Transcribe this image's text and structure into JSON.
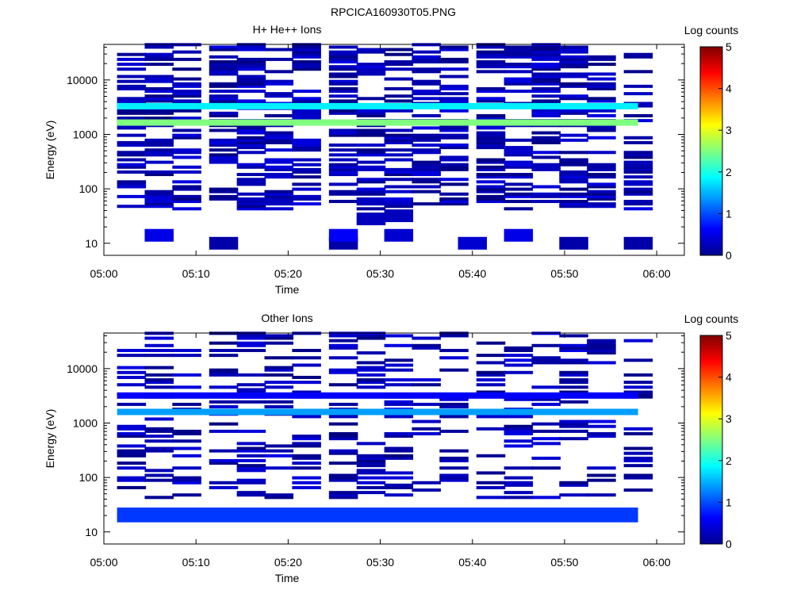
{
  "figure_title": "RPCICA160930T05.PNG",
  "chart_data": [
    {
      "type": "heatmap",
      "title": "H+ He++ Ions",
      "xlabel": "Time",
      "ylabel": "Energy (eV)",
      "x_ticks": [
        "05:00",
        "05:10",
        "05:20",
        "05:30",
        "05:40",
        "05:50",
        "06:00"
      ],
      "x_range": [
        "05:00",
        "06:03"
      ],
      "y_scale": "log",
      "y_ticks": [
        "10",
        "100",
        "1000",
        "10000"
      ],
      "y_range": [
        6,
        45000
      ],
      "colorbar": {
        "label": "Log counts",
        "ticks": [
          "0",
          "1",
          "2",
          "3",
          "4",
          "5"
        ],
        "range": [
          0,
          5
        ]
      },
      "time_bins": [
        "05:03",
        "05:06",
        "05:09",
        "05:13",
        "05:16",
        "05:19",
        "05:22",
        "05:26",
        "05:29",
        "05:32",
        "05:35",
        "05:38",
        "05:42",
        "05:45",
        "05:48",
        "05:51",
        "05:54",
        "05:58"
      ],
      "bands": [
        {
          "energy_ev": 1650,
          "log_counts": 2.5
        },
        {
          "energy_ev": 3300,
          "log_counts": 1.8
        }
      ],
      "scatter_density": 0.5,
      "low_energy_cells": [
        {
          "time": "05:13",
          "energy_ev": 10,
          "log_counts": 0.2
        },
        {
          "time": "05:26",
          "energy_ev": 10,
          "log_counts": 0.2
        },
        {
          "time": "05:40",
          "energy_ev": 10,
          "log_counts": 0.4
        },
        {
          "time": "05:51",
          "energy_ev": 10,
          "log_counts": 0.2
        },
        {
          "time": "05:58",
          "energy_ev": 10,
          "log_counts": 0.2
        },
        {
          "time": "05:06",
          "energy_ev": 14,
          "log_counts": 0.5
        },
        {
          "time": "05:26",
          "energy_ev": 14,
          "log_counts": 0.6
        },
        {
          "time": "05:32",
          "energy_ev": 14,
          "log_counts": 0.4
        },
        {
          "time": "05:45",
          "energy_ev": 14,
          "log_counts": 0.5
        },
        {
          "time": "05:29",
          "energy_ev": 28,
          "log_counts": 0.3
        },
        {
          "time": "05:32",
          "energy_ev": 32,
          "log_counts": 0.3
        }
      ]
    },
    {
      "type": "heatmap",
      "title": "Other Ions",
      "xlabel": "Time",
      "ylabel": "Energy (eV)",
      "x_ticks": [
        "05:00",
        "05:10",
        "05:20",
        "05:30",
        "05:40",
        "05:50",
        "06:00"
      ],
      "x_range": [
        "05:00",
        "06:03"
      ],
      "y_scale": "log",
      "y_ticks": [
        "10",
        "100",
        "1000",
        "10000"
      ],
      "y_range": [
        6,
        45000
      ],
      "colorbar": {
        "label": "Log counts",
        "ticks": [
          "0",
          "1",
          "2",
          "3",
          "4",
          "5"
        ],
        "range": [
          0,
          5
        ]
      },
      "time_bins": [
        "05:03",
        "05:06",
        "05:09",
        "05:13",
        "05:16",
        "05:19",
        "05:22",
        "05:26",
        "05:29",
        "05:32",
        "05:35",
        "05:38",
        "05:42",
        "05:45",
        "05:48",
        "05:51",
        "05:54",
        "05:58"
      ],
      "bands": [
        {
          "energy_ev": 1600,
          "log_counts": 1.4
        },
        {
          "energy_ev": 3200,
          "log_counts": 0.6
        }
      ],
      "low_energy_band": {
        "energy_range_ev": [
          15,
          28
        ],
        "log_counts": 0.9
      },
      "scatter_density": 0.3
    }
  ]
}
